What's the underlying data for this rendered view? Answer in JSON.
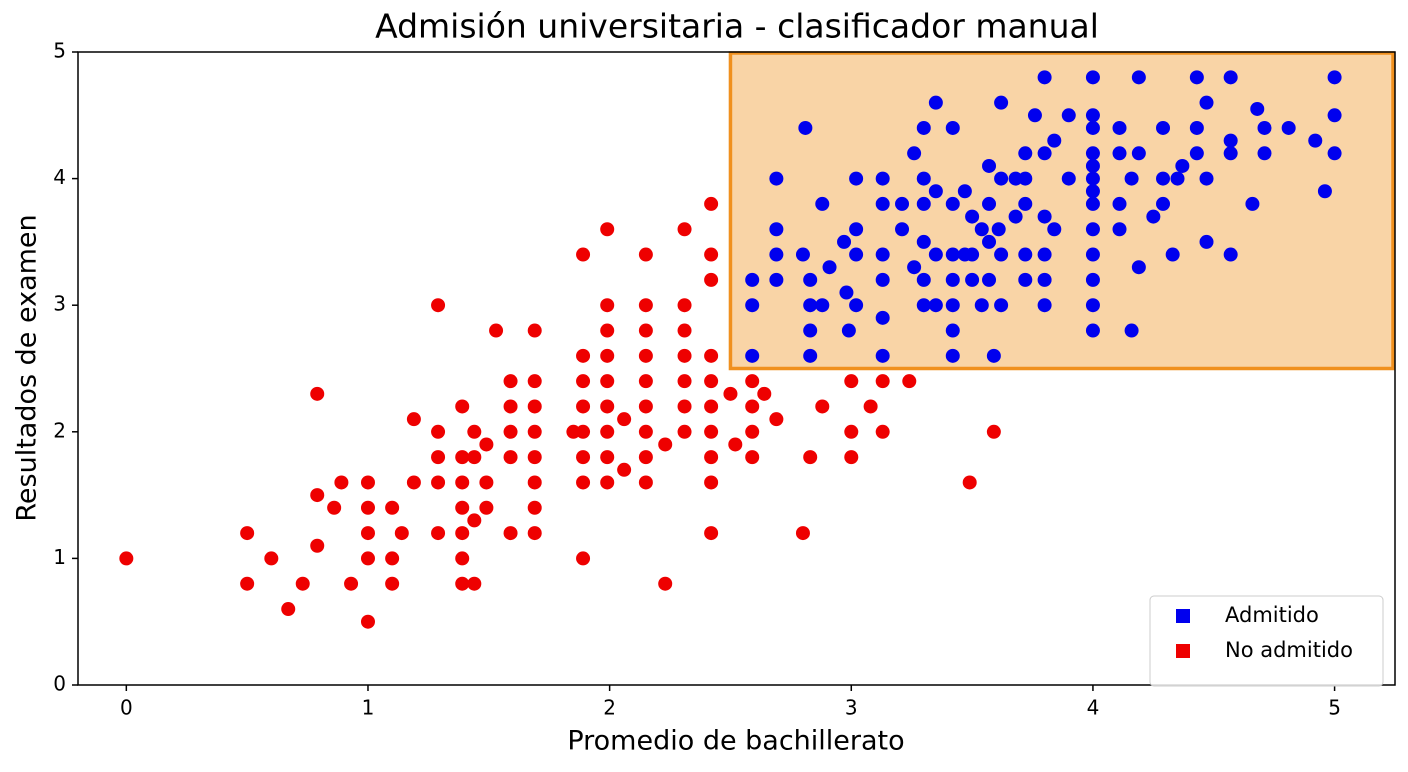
{
  "chart_data": {
    "type": "scatter",
    "title": "Admisión universitaria - clasificador manual",
    "x_label": "Promedio de bachillerato",
    "y_label": "Resultados de examen",
    "xlim": [
      -0.2,
      5.25
    ],
    "ylim": [
      0,
      5
    ],
    "xticks": [
      0,
      1,
      2,
      3,
      4,
      5
    ],
    "yticks": [
      0,
      1,
      2,
      3,
      4,
      5
    ],
    "legend": "lower right",
    "region": {
      "x_min": 2.5,
      "y_min": 2.5,
      "fill": "#f8cf9c",
      "edge": "#f0901e"
    },
    "series": [
      {
        "name": "Admitido",
        "color": "#0000ee",
        "x": [
          2.59,
          2.59,
          2.59,
          2.69,
          2.69,
          2.69,
          2.69,
          2.81,
          2.8,
          2.83,
          2.83,
          2.83,
          2.83,
          2.88,
          2.88,
          2.91,
          2.97,
          2.98,
          2.99,
          3.02,
          3.02,
          3.02,
          3.02,
          3.13,
          3.13,
          3.13,
          3.13,
          3.13,
          3.13,
          3.21,
          3.21,
          3.26,
          3.26,
          3.3,
          3.3,
          3.3,
          3.3,
          3.3,
          3.3,
          3.35,
          3.35,
          3.35,
          3.35,
          3.42,
          3.42,
          3.42,
          3.42,
          3.42,
          3.42,
          3.42,
          3.47,
          3.47,
          3.5,
          3.5,
          3.5,
          3.54,
          3.54,
          3.57,
          3.57,
          3.57,
          3.57,
          3.59,
          3.61,
          3.62,
          3.62,
          3.62,
          3.62,
          3.68,
          3.68,
          3.72,
          3.72,
          3.72,
          3.72,
          3.72,
          3.76,
          3.8,
          3.8,
          3.8,
          3.8,
          3.8,
          3.8,
          3.84,
          3.84,
          3.9,
          3.9,
          4,
          4,
          4,
          4,
          4,
          4,
          4,
          4,
          4,
          4,
          4,
          4,
          4,
          4.11,
          4.11,
          4.11,
          4.11,
          4.16,
          4.16,
          4.19,
          4.19,
          4.19,
          4.25,
          4.29,
          4.29,
          4.29,
          4.33,
          4.35,
          4.37,
          4.43,
          4.43,
          4.43,
          4.47,
          4.47,
          4.47,
          4.57,
          4.57,
          4.57,
          4.57,
          4.68,
          4.66,
          4.71,
          4.71,
          4.81,
          4.92,
          4.96,
          5,
          5,
          5
        ],
        "values": [
          3.2,
          3.0,
          2.6,
          4.0,
          3.6,
          3.4,
          3.2,
          4.4,
          3.4,
          3.2,
          3.0,
          2.8,
          2.6,
          3.8,
          3.0,
          3.3,
          3.5,
          3.1,
          2.8,
          4.0,
          3.6,
          3.4,
          3.0,
          4.0,
          3.8,
          3.4,
          3.2,
          2.9,
          2.6,
          3.8,
          3.6,
          4.2,
          3.3,
          4.4,
          4.0,
          3.8,
          3.5,
          3.2,
          3.0,
          4.6,
          3.9,
          3.4,
          3.0,
          4.4,
          3.8,
          3.4,
          3.2,
          3.0,
          2.8,
          2.6,
          3.9,
          3.4,
          3.7,
          3.4,
          3.2,
          3.6,
          3.0,
          4.1,
          3.8,
          3.5,
          3.2,
          2.6,
          3.6,
          4.6,
          4.0,
          3.4,
          3.0,
          4.0,
          3.7,
          4.2,
          4.0,
          3.8,
          3.4,
          3.2,
          4.5,
          4.8,
          4.2,
          3.7,
          3.4,
          3.2,
          3.0,
          4.3,
          3.6,
          4.5,
          4.0,
          4.8,
          4.5,
          4.4,
          4.2,
          4.1,
          4.0,
          3.9,
          3.8,
          3.6,
          3.4,
          3.2,
          3.0,
          2.8,
          4.4,
          4.2,
          3.8,
          3.6,
          4.0,
          2.8,
          4.8,
          4.2,
          3.3,
          3.7,
          4.4,
          4.0,
          3.8,
          3.4,
          4.0,
          4.1,
          4.8,
          4.4,
          4.2,
          4.6,
          4.0,
          3.5,
          4.8,
          4.3,
          4.2,
          3.4,
          4.55,
          3.8,
          4.4,
          4.2,
          4.4,
          4.3,
          3.9,
          4.8,
          4.5,
          4.2
        ]
      },
      {
        "name": "No admitido",
        "color": "#ee0000",
        "x": [
          0,
          0.5,
          0.5,
          0.6,
          0.67,
          0.73,
          0.79,
          0.79,
          0.79,
          0.86,
          0.89,
          0.93,
          1,
          1,
          1,
          1,
          1,
          1.1,
          1.1,
          1.1,
          1.14,
          1.19,
          1.19,
          1.29,
          1.29,
          1.29,
          1.29,
          1.29,
          1.39,
          1.39,
          1.39,
          1.39,
          1.39,
          1.39,
          1.39,
          1.44,
          1.44,
          1.44,
          1.44,
          1.49,
          1.49,
          1.49,
          1.53,
          1.59,
          1.59,
          1.59,
          1.59,
          1.59,
          1.69,
          1.69,
          1.69,
          1.69,
          1.69,
          1.69,
          1.69,
          1.69,
          1.85,
          1.89,
          1.89,
          1.89,
          1.89,
          1.89,
          1.89,
          1.89,
          1.89,
          1.99,
          1.99,
          1.99,
          1.99,
          1.99,
          1.99,
          1.99,
          1.99,
          1.99,
          2.06,
          2.06,
          2.15,
          2.15,
          2.15,
          2.15,
          2.15,
          2.15,
          2.15,
          2.15,
          2.15,
          2.23,
          2.23,
          2.31,
          2.31,
          2.31,
          2.31,
          2.31,
          2.31,
          2.31,
          2.42,
          2.42,
          2.42,
          2.42,
          2.42,
          2.42,
          2.42,
          2.42,
          2.42,
          2.42,
          2.5,
          2.52,
          2.59,
          2.59,
          2.59,
          2.59,
          2.64,
          2.69,
          2.8,
          2.83,
          2.88,
          3,
          3,
          3,
          3.08,
          3.13,
          3.13,
          3.24,
          3.49,
          3.59
        ],
        "values": [
          1.0,
          1.2,
          0.8,
          1.0,
          0.6,
          0.8,
          2.3,
          1.5,
          1.1,
          1.4,
          1.6,
          0.8,
          1.6,
          1.4,
          1.2,
          1.0,
          0.5,
          1.4,
          1.0,
          0.8,
          1.2,
          2.1,
          1.6,
          3.0,
          2.0,
          1.8,
          1.6,
          1.2,
          2.2,
          1.8,
          1.6,
          1.4,
          1.2,
          1.0,
          0.8,
          0.8,
          1.3,
          2.0,
          1.8,
          1.9,
          1.6,
          1.4,
          2.8,
          1.2,
          2.4,
          2.2,
          2.0,
          1.8,
          2.8,
          2.4,
          2.2,
          2.0,
          1.8,
          1.6,
          1.4,
          1.2,
          2.0,
          3.4,
          2.6,
          2.4,
          2.2,
          2.0,
          1.8,
          1.6,
          1.0,
          3.6,
          3.0,
          2.8,
          2.6,
          2.4,
          2.2,
          2.0,
          1.8,
          1.6,
          1.7,
          2.1,
          3.4,
          3.0,
          2.8,
          2.6,
          2.4,
          2.2,
          2.0,
          1.8,
          1.6,
          1.9,
          0.8,
          3.6,
          3.0,
          2.8,
          2.6,
          2.4,
          2.2,
          2.0,
          3.8,
          3.4,
          3.2,
          2.6,
          2.4,
          2.2,
          2.0,
          1.8,
          1.6,
          1.2,
          2.3,
          1.9,
          2.4,
          2.2,
          2.0,
          1.8,
          2.3,
          2.1,
          1.2,
          1.8,
          2.2,
          2.4,
          2.0,
          1.8,
          2.2,
          2.4,
          2.0,
          2.4,
          1.6,
          2.0
        ]
      }
    ]
  }
}
